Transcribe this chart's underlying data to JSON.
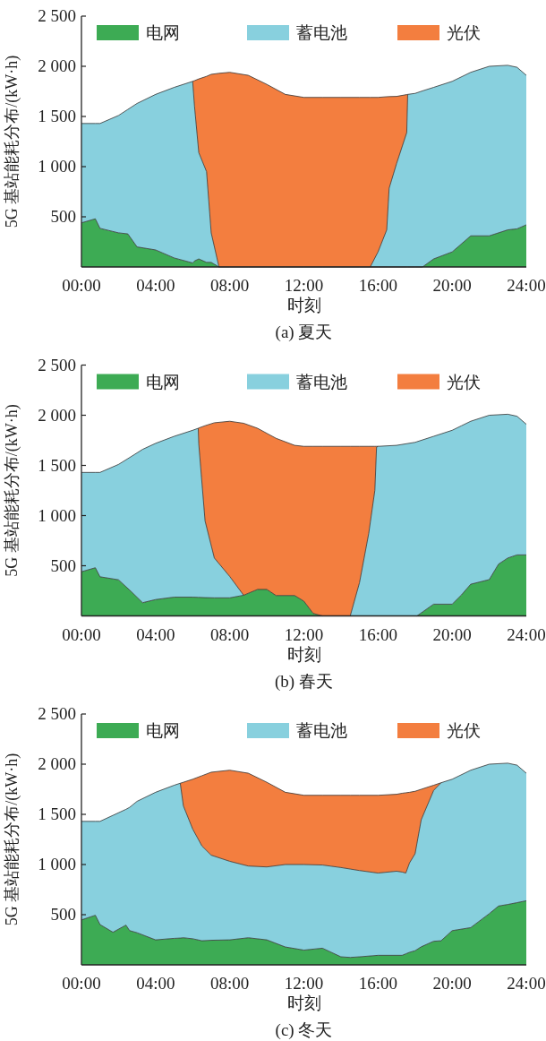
{
  "chart_data": [
    {
      "type": "area",
      "stacked": true,
      "title": "(a) 夏天",
      "xlabel": "时刻",
      "ylabel": "5G 基站能耗分布/(kW·h)",
      "legend": "top",
      "xlim": [
        0,
        24
      ],
      "ylim": [
        0,
        2500
      ],
      "xticks": [
        {
          "value": 0,
          "label": "00:00"
        },
        {
          "value": 4,
          "label": "04:00"
        },
        {
          "value": 8,
          "label": "08:00"
        },
        {
          "value": 12,
          "label": "12:00"
        },
        {
          "value": 16,
          "label": "16:00"
        },
        {
          "value": 20,
          "label": "20:00"
        },
        {
          "value": 24,
          "label": "24:00"
        }
      ],
      "yticks": [
        {
          "value": 500,
          "label": "500"
        },
        {
          "value": 1000,
          "label": "1 000"
        },
        {
          "value": 1500,
          "label": "1 500"
        },
        {
          "value": 2000,
          "label": "2 000"
        },
        {
          "value": 2500,
          "label": "2 500"
        }
      ],
      "x": [
        0,
        0.75,
        1,
        2,
        2.5,
        3,
        4,
        5,
        6,
        6.1,
        6.33,
        6.75,
        7,
        7.42,
        8,
        9,
        10,
        11,
        12,
        13,
        14,
        15,
        15.58,
        16,
        16.47,
        16.6,
        17,
        17.55,
        17.6,
        18,
        18.4,
        19,
        20,
        21,
        22,
        23,
        23.5,
        24
      ],
      "series": [
        {
          "name": "电网",
          "color": "#3dab54",
          "values": [
            440,
            480,
            385,
            340,
            330,
            200,
            170,
            90,
            40,
            60,
            80,
            46,
            46,
            0,
            0,
            0,
            0,
            0,
            0,
            0,
            0,
            0,
            0,
            0,
            0,
            0,
            0,
            0,
            0,
            0,
            0,
            80,
            150,
            310,
            310,
            370,
            380,
            420
          ]
        },
        {
          "name": "蓄电池",
          "color": "#88d0de",
          "values": [
            990,
            950,
            1045,
            1170,
            1240,
            1430,
            1550,
            1700,
            1810,
            1540,
            1060,
            904,
            294,
            0,
            null,
            null,
            null,
            null,
            null,
            null,
            null,
            null,
            0,
            150,
            370,
            785,
            1030,
            1340,
            1720,
            1730,
            1755,
            1710,
            1700,
            1630,
            1690,
            1640,
            1610,
            1490
          ]
        },
        {
          "name": "光伏",
          "color": "#f37e3f",
          "values": [
            null,
            null,
            null,
            null,
            null,
            null,
            null,
            null,
            0,
            257,
            734,
            950,
            1580,
            1930,
            1940,
            1910,
            1820,
            1720,
            1690,
            1690,
            1690,
            1690,
            1690,
            1540,
            1327,
            913,
            670,
            378,
            0,
            null,
            null,
            null,
            null,
            null,
            null,
            null,
            null,
            null
          ]
        }
      ]
    },
    {
      "type": "area",
      "stacked": true,
      "title": "(b) 春天",
      "xlabel": "时刻",
      "ylabel": "5G 基站能耗分布/(kW·h)",
      "legend": "top",
      "xlim": [
        0,
        24
      ],
      "ylim": [
        0,
        2500
      ],
      "xticks": [
        {
          "value": 0,
          "label": "00:00"
        },
        {
          "value": 4,
          "label": "04:00"
        },
        {
          "value": 8,
          "label": "08:00"
        },
        {
          "value": 12,
          "label": "12:00"
        },
        {
          "value": 16,
          "label": "16:00"
        },
        {
          "value": 20,
          "label": "20:00"
        },
        {
          "value": 24,
          "label": "24:00"
        }
      ],
      "yticks": [
        {
          "value": 500,
          "label": "500"
        },
        {
          "value": 1000,
          "label": "1 000"
        },
        {
          "value": 1500,
          "label": "1 500"
        },
        {
          "value": 2000,
          "label": "2 000"
        },
        {
          "value": 2500,
          "label": "2 500"
        }
      ],
      "x": [
        0,
        0.75,
        1,
        2,
        2.7,
        3.3,
        4,
        5,
        6,
        6.3,
        6.33,
        6.67,
        7.17,
        8,
        8.75,
        9.5,
        10,
        10.5,
        11.5,
        12,
        12.5,
        13,
        14,
        14.5,
        15,
        15.5,
        15.83,
        15.92,
        16,
        17,
        18,
        18.1,
        19,
        20,
        20.5,
        21,
        22,
        22.5,
        23,
        23.5,
        24
      ],
      "series": [
        {
          "name": "电网",
          "color": "#3dab54",
          "values": [
            440,
            480,
            390,
            360,
            240,
            132,
            163,
            187,
            187,
            185,
            185,
            182,
            180,
            180,
            206,
            264,
            264,
            203,
            203,
            147,
            25,
            0,
            0,
            0,
            0,
            0,
            0,
            0,
            0,
            0,
            0,
            0,
            117,
            117,
            209,
            316,
            362,
            516,
            577,
            608,
            608
          ]
        },
        {
          "name": "蓄电池",
          "color": "#88d0de",
          "values": [
            990,
            950,
            1040,
            1150,
            1350,
            1528,
            1557,
            1603,
            1663,
            1685,
            1528,
            764,
            397,
            213,
            0,
            null,
            null,
            null,
            null,
            null,
            null,
            null,
            null,
            0,
            331,
            823,
            1252,
            1682,
            1690,
            1700,
            1730,
            1736,
            1673,
            1733,
            1686,
            1624,
            1638,
            1489,
            1433,
            1382,
            1302
          ]
        },
        {
          "name": "光伏",
          "color": "#f37e3f",
          "values": [
            null,
            null,
            null,
            null,
            null,
            null,
            null,
            null,
            null,
            0,
            160,
            950,
            1348,
            1547,
            1714,
            1606,
            1556,
            1567,
            1497,
            1543,
            1665,
            1690,
            1690,
            1690,
            1359,
            867,
            438,
            8,
            0,
            null,
            null,
            null,
            null,
            null,
            null,
            null,
            null,
            null,
            null,
            null,
            null
          ]
        }
      ]
    },
    {
      "type": "area",
      "stacked": true,
      "title": "(c) 冬天",
      "xlabel": "时刻",
      "ylabel": "5G 基站能耗分布/(kW·h)",
      "legend": "top",
      "xlim": [
        0,
        24
      ],
      "ylim": [
        0,
        2500
      ],
      "xticks": [
        {
          "value": 0,
          "label": "00:00"
        },
        {
          "value": 4,
          "label": "04:00"
        },
        {
          "value": 8,
          "label": "08:00"
        },
        {
          "value": 12,
          "label": "12:00"
        },
        {
          "value": 16,
          "label": "16:00"
        },
        {
          "value": 20,
          "label": "20:00"
        },
        {
          "value": 24,
          "label": "24:00"
        }
      ],
      "yticks": [
        {
          "value": 500,
          "label": "500"
        },
        {
          "value": 1000,
          "label": "1 000"
        },
        {
          "value": 1500,
          "label": "1 500"
        },
        {
          "value": 2000,
          "label": "2 000"
        },
        {
          "value": 2500,
          "label": "2 500"
        }
      ],
      "x": [
        0,
        0.75,
        1,
        1.7,
        2.4,
        2.6,
        3,
        4,
        5,
        5.33,
        5.5,
        6,
        6.5,
        7,
        8,
        9,
        10,
        11,
        12,
        13,
        14,
        14.5,
        15,
        16,
        17,
        17.3,
        17.5,
        17.7,
        18,
        18.33,
        19,
        19.4,
        20,
        21,
        22,
        22.5,
        23,
        23.5,
        24
      ],
      "series": [
        {
          "name": "电网",
          "color": "#3dab54",
          "values": [
            448,
            494,
            402,
            325,
            396,
            341,
            320,
            249,
            264,
            267,
            270,
            260,
            240,
            245,
            249,
            270,
            249,
            178,
            147,
            166,
            80,
            74,
            80,
            95,
            95,
            95,
            110,
            125,
            141,
            180,
            235,
            240,
            341,
            371,
            510,
            586,
            602,
            620,
            639
          ]
        },
        {
          "name": "蓄电池",
          "color": "#88d0de",
          "values": [
            982,
            936,
            1028,
            1165,
            1154,
            1229,
            1310,
            1471,
            1526,
            1543,
            1314,
            1094,
            945,
            848,
            783,
            715,
            727,
            822,
            853,
            829,
            890,
            881,
            860,
            820,
            838,
            830,
            805,
            891,
            967,
            1266,
            1503,
            1575,
            1509,
            1569,
            1490,
            1419,
            1408,
            1370,
            1271
          ]
        },
        {
          "name": "光伏",
          "color": "#f37e3f",
          "values": [
            null,
            null,
            null,
            null,
            null,
            null,
            null,
            null,
            null,
            0,
            236,
            496,
            700,
            827,
            908,
            925,
            844,
            720,
            690,
            695,
            720,
            735,
            750,
            775,
            767,
            785,
            800,
            704,
            622,
            304,
            52,
            0,
            null,
            null,
            null,
            null,
            null,
            null,
            null
          ]
        }
      ]
    }
  ]
}
